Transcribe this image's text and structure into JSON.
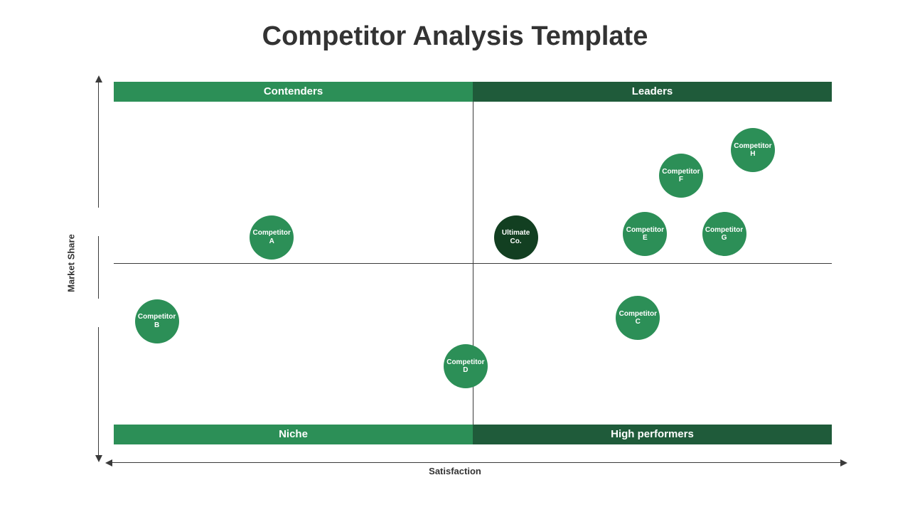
{
  "title": "Competitor Analysis Template",
  "axes": {
    "x_label": "Satisfaction",
    "y_label": "Market Share",
    "line_color": "#3a3a3a"
  },
  "quadrants": {
    "top_left": {
      "label": "Contenders",
      "bg": "#2c8f57"
    },
    "top_right": {
      "label": "Leaders",
      "bg": "#1f5b3a"
    },
    "bottom_left": {
      "label": "Niche",
      "bg": "#2c8f57"
    },
    "bottom_right": {
      "label": "High performers",
      "bg": "#1f5b3a"
    },
    "label_color": "#ffffff",
    "label_fontsize": 15
  },
  "chart": {
    "type": "quadrant-bubble",
    "xlim": [
      0,
      100
    ],
    "ylim": [
      0,
      100
    ],
    "bubble_label_color": "#ffffff",
    "bubbles": [
      {
        "id": "ultimate",
        "label": "Ultimate Co.",
        "x": 56,
        "y": 58,
        "diameter": 62,
        "color": "#123f21"
      },
      {
        "id": "a",
        "label": "Competitor A",
        "x": 22,
        "y": 58,
        "diameter": 62,
        "color": "#2c8f57"
      },
      {
        "id": "b",
        "label": "Competitor B",
        "x": 6,
        "y": 32,
        "diameter": 62,
        "color": "#2c8f57"
      },
      {
        "id": "c",
        "label": "Competitor C",
        "x": 73,
        "y": 33,
        "diameter": 62,
        "color": "#2c8f57"
      },
      {
        "id": "d",
        "label": "Competitor D",
        "x": 49,
        "y": 18,
        "diameter": 62,
        "color": "#2c8f57"
      },
      {
        "id": "e",
        "label": "Competitor E",
        "x": 74,
        "y": 59,
        "diameter": 62,
        "color": "#2c8f57"
      },
      {
        "id": "f",
        "label": "Competitor F",
        "x": 79,
        "y": 77,
        "diameter": 62,
        "color": "#2c8f57"
      },
      {
        "id": "g",
        "label": "Competitor G",
        "x": 85,
        "y": 59,
        "diameter": 62,
        "color": "#2c8f57"
      },
      {
        "id": "h",
        "label": "Competitor H",
        "x": 89,
        "y": 85,
        "diameter": 62,
        "color": "#2c8f57"
      }
    ]
  },
  "colors": {
    "background": "#ffffff",
    "title_color": "#333333",
    "axis_label_color": "#333333"
  },
  "typography": {
    "title_fontsize": 38,
    "title_weight": 800,
    "axis_label_fontsize": 13,
    "bubble_fontsize": 10
  }
}
